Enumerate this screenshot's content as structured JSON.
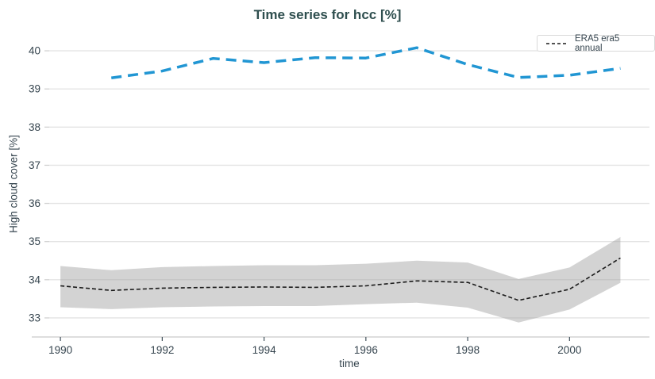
{
  "chart_data": {
    "type": "line",
    "title": "Time series for hcc [%]",
    "xlabel": "time",
    "ylabel": "High cloud cover [%]",
    "x_ticks": [
      1990,
      1992,
      1994,
      1996,
      1998,
      2000
    ],
    "y_ticks": [
      33,
      34,
      35,
      36,
      37,
      38,
      39,
      40
    ],
    "x_range": [
      1989.78,
      2001.57
    ],
    "y_range": [
      32.5,
      40.5
    ],
    "grid": true,
    "legend_position": "top-right",
    "grid_color": "#e4e4e4",
    "axis_line_color": "#c9c9c9",
    "x_tick_color": "#42525c",
    "y_tick_color": "#d2d2d2",
    "font_color": "#36454f",
    "title_color": "#2f4f4f",
    "series": [
      {
        "name": "ERA5 era5 annual",
        "show_in_legend": true,
        "line_style": "dashed",
        "dash": "5 3",
        "width": 1.6,
        "color": "#1a1a1a",
        "x": [
          1990,
          1991,
          1992,
          1993,
          1994,
          1995,
          1996,
          1997,
          1998,
          1999,
          2000,
          2001
        ],
        "y": [
          33.84,
          33.72,
          33.78,
          33.8,
          33.81,
          33.8,
          33.84,
          33.97,
          33.93,
          33.46,
          33.75,
          34.57
        ],
        "band": {
          "color": "rgba(158,158,158,0.45)",
          "upper": [
            34.36,
            34.25,
            34.33,
            34.36,
            34.38,
            34.38,
            34.42,
            34.5,
            34.45,
            34.02,
            34.32,
            35.12
          ],
          "lower": [
            33.28,
            33.23,
            33.28,
            33.3,
            33.31,
            33.31,
            33.36,
            33.4,
            33.27,
            32.88,
            33.22,
            33.92
          ]
        }
      },
      {
        "name": "",
        "show_in_legend": false,
        "line_style": "dashed",
        "dash": "13 8",
        "width": 3.5,
        "color": "#2196d3",
        "x": [
          1991,
          1992,
          1993,
          1994,
          1995,
          1996,
          1997,
          1998,
          1999,
          2000,
          2001
        ],
        "y": [
          39.29,
          39.47,
          39.8,
          39.69,
          39.82,
          39.81,
          40.08,
          39.64,
          39.3,
          39.36,
          39.54
        ]
      }
    ]
  }
}
